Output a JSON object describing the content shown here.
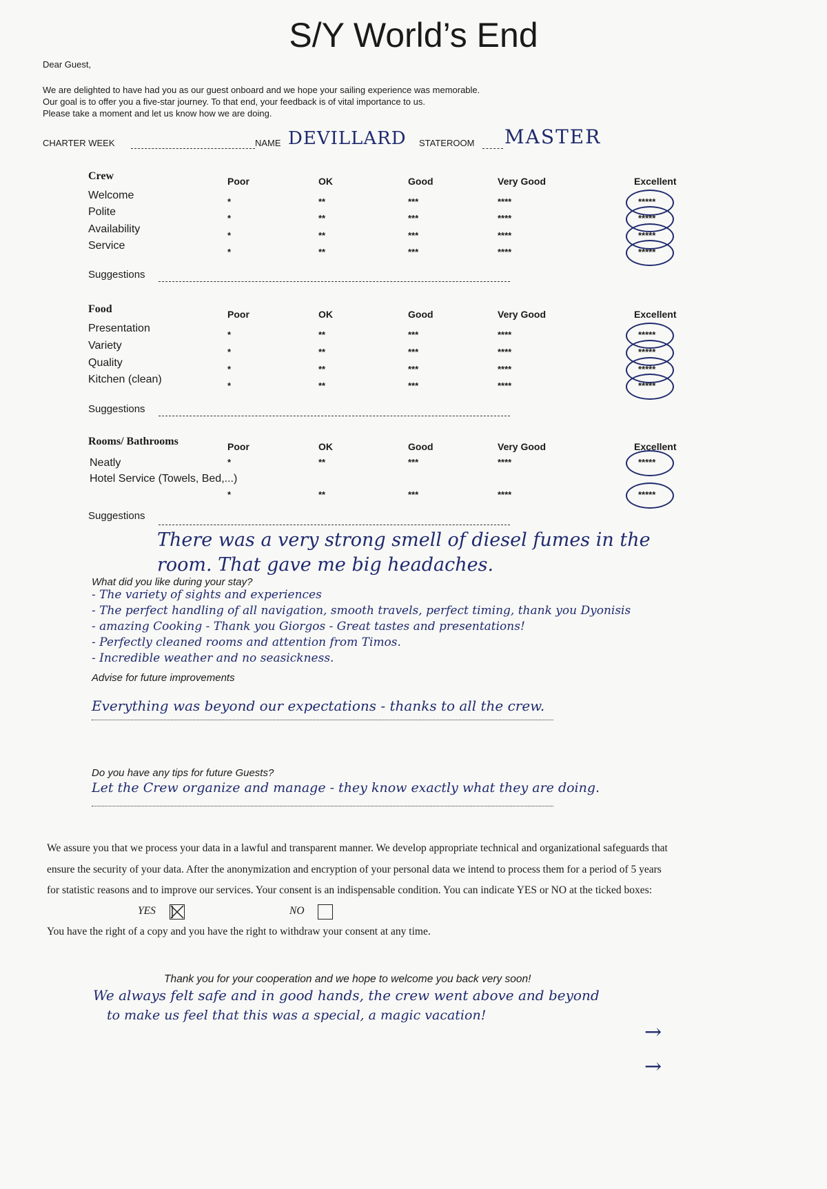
{
  "title": "S/Y World’s End",
  "greeting": "Dear Guest,",
  "intro": [
    "We are delighted to have had you as our guest onboard and we hope your sailing experience was memorable.",
    "Our goal is to offer you a five-star journey. To that end, your feedback is of vital importance to us.",
    "Please take a moment and let us know how we are doing."
  ],
  "fields": {
    "charter_week_label": "CHARTER WEEK",
    "charter_week_value": "",
    "name_label": "NAME",
    "name_value": "DEVILLARD",
    "stateroom_label": "STATEROOM",
    "stateroom_value": "MASTER"
  },
  "rating_columns": [
    "Poor",
    "OK",
    "Good",
    "Very Good",
    "Excellent"
  ],
  "rating_stars": [
    "*",
    "**",
    "***",
    "****",
    "*****"
  ],
  "suggestions_label": "Suggestions",
  "sections": [
    {
      "title": "Crew",
      "items": [
        "Welcome",
        "Polite",
        "Availability",
        "Service"
      ],
      "selected": "Excellent",
      "suggestions": ""
    },
    {
      "title": "Food",
      "items": [
        "Presentation",
        "Variety",
        "Quality",
        "Kitchen (clean)"
      ],
      "selected": "Excellent",
      "suggestions": ""
    },
    {
      "title": "Rooms/ Bathrooms",
      "items": [
        "Neatly",
        "Hotel Service (Towels, Bed,...)"
      ],
      "selected": "Excellent",
      "suggestions": "There was a very strong smell of diesel fumes in the room. That gave me big headaches."
    }
  ],
  "liked": {
    "label": "What did you like during your stay?",
    "answers": [
      "- The variety of sights and experiences",
      "- The perfect handling of all navigation, smooth travels, perfect timing, thank you Dyonisis",
      "- amazing Cooking - Thank you Giorgos - Great tastes and presentations!",
      "- Perfectly cleaned rooms and attention from Timos.",
      "- Incredible weather and no seasickness."
    ]
  },
  "advise": {
    "label": "Advise for future improvements",
    "answer": "Everything was beyond our expectations - thanks to all the crew."
  },
  "tips": {
    "label": "Do you have any tips for future Guests?",
    "answer": "Let the Crew organize and manage - they know exactly what they are doing."
  },
  "privacy": [
    "We assure you that we process your data in a lawful and transparent manner. We develop appropriate technical and organizational safeguards that",
    "ensure the security of your data. After the anonymization and encryption of your personal data we intend to process them for a period of 5 years",
    "for statistic reasons and to improve our services. Your consent is an indispensable condition. You can indicate YES or NO at the ticked boxes:"
  ],
  "consent": {
    "yes_label": "YES",
    "no_label": "NO",
    "yes_checked": true,
    "no_checked": false
  },
  "withdraw": "You have the right of a copy and you have the right to withdraw your consent at any time.",
  "closing": "Thank you for your cooperation and we hope to welcome you back very soon!",
  "closing_note": [
    "We always felt safe and in good hands, the crew went above and beyond",
    "to make us feel that this was a special, a magic vacation!"
  ],
  "arrows": [
    "→",
    "→"
  ]
}
